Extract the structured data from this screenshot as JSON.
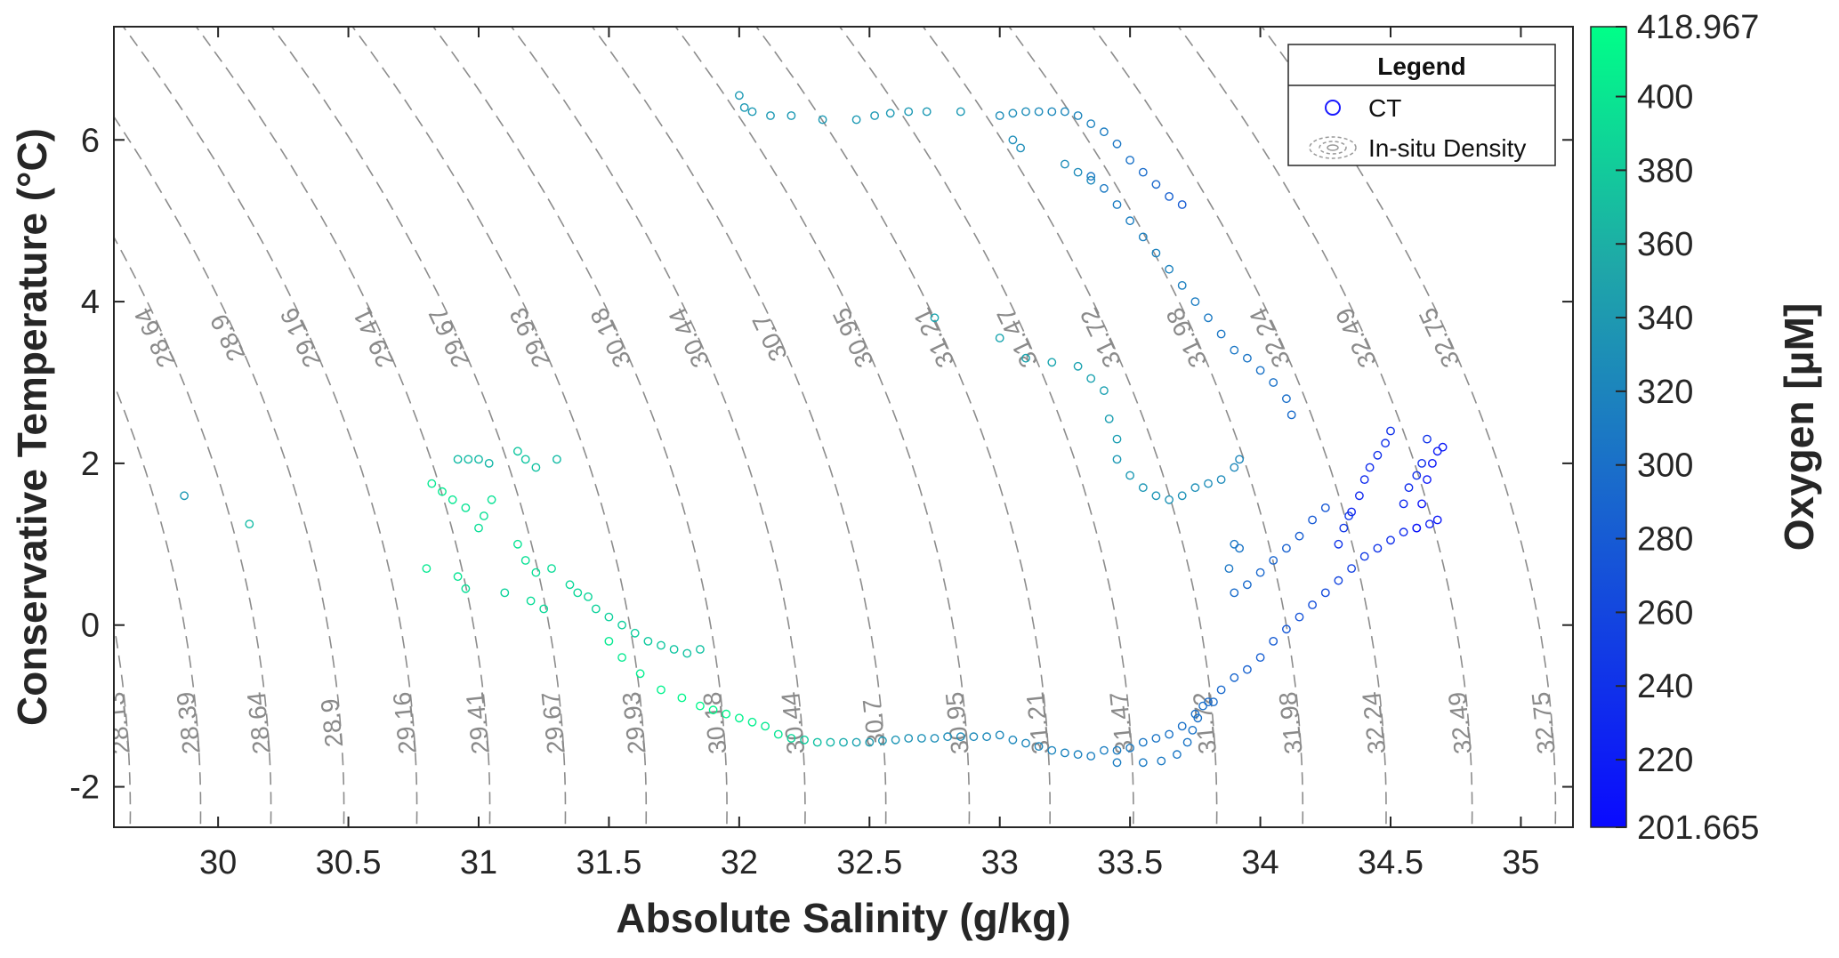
{
  "chart_data": {
    "type": "scatter",
    "xlabel": "Absolute Salinity (g/kg)",
    "ylabel": "Conservative Temperature (°C)",
    "xlim": [
      29.6,
      35.2
    ],
    "ylim": [
      -2.5,
      7.4
    ],
    "x_ticks": [
      30,
      30.5,
      31,
      31.5,
      32,
      32.5,
      33,
      33.5,
      34,
      34.5,
      35
    ],
    "x_tick_labels": [
      "30",
      "30.5",
      "31",
      "31.5",
      "32",
      "32.5",
      "33",
      "33.5",
      "34",
      "34.5",
      "35"
    ],
    "y_ticks": [
      -2,
      0,
      2,
      4,
      6
    ],
    "y_tick_labels": [
      "-2",
      "0",
      "2",
      "4",
      "6"
    ],
    "grid": false,
    "legend": {
      "title": "Legend",
      "placement": "top-right",
      "entries": [
        {
          "label": "CT",
          "marker": "circle",
          "color": "#1a1aff"
        },
        {
          "label": "In-situ Density",
          "marker": "dashed-contour",
          "color": "#888888"
        }
      ]
    },
    "colorbar": {
      "label": "Oxygen [μM]",
      "min": 201.665,
      "max": 418.967,
      "ticks": [
        201.665,
        220,
        240,
        260,
        280,
        300,
        320,
        340,
        360,
        380,
        400,
        418.967
      ],
      "tick_labels": [
        "201.665",
        "220",
        "240",
        "260",
        "280",
        "300",
        "320",
        "340",
        "360",
        "380",
        "400",
        "418.967"
      ],
      "color_low": "#0a0aff",
      "color_mid": "#1f8fb8",
      "color_high": "#00ff88"
    },
    "isopycnals": [
      {
        "label": "28.13",
        "x_at_0": 29.6
      },
      {
        "label": "28.39",
        "x_at_0": 29.87
      },
      {
        "label": "28.64",
        "x_at_0": 30.14
      },
      {
        "label": "28.9",
        "x_at_0": 30.42
      },
      {
        "label": "29.16",
        "x_at_0": 30.7
      },
      {
        "label": "29.41",
        "x_at_0": 30.98
      },
      {
        "label": "29.67",
        "x_at_0": 31.27
      },
      {
        "label": "29.93",
        "x_at_0": 31.58
      },
      {
        "label": "30.18",
        "x_at_0": 31.89
      },
      {
        "label": "30.44",
        "x_at_0": 32.19
      },
      {
        "label": "30.7",
        "x_at_0": 32.5
      },
      {
        "label": "30.95",
        "x_at_0": 32.82
      },
      {
        "label": "31.21",
        "x_at_0": 33.13
      },
      {
        "label": "31.47",
        "x_at_0": 33.45
      },
      {
        "label": "31.72",
        "x_at_0": 33.77
      },
      {
        "label": "31.98",
        "x_at_0": 34.1
      },
      {
        "label": "32.24",
        "x_at_0": 34.42
      },
      {
        "label": "32.49",
        "x_at_0": 34.75
      },
      {
        "label": "32.75",
        "x_at_0": 35.07
      }
    ],
    "series": [
      {
        "name": "CT",
        "points": [
          [
            29.87,
            1.6,
            330
          ],
          [
            30.12,
            1.25,
            360
          ],
          [
            30.8,
            0.7,
            400
          ],
          [
            30.92,
            0.6,
            395
          ],
          [
            30.95,
            0.45,
            390
          ],
          [
            30.82,
            1.75,
            400
          ],
          [
            30.86,
            1.65,
            400
          ],
          [
            30.9,
            1.55,
            398
          ],
          [
            30.95,
            1.45,
            395
          ],
          [
            31.02,
            1.35,
            392
          ],
          [
            31.05,
            1.55,
            394
          ],
          [
            31.0,
            1.2,
            390
          ],
          [
            31.1,
            0.4,
            380
          ],
          [
            30.92,
            2.05,
            360
          ],
          [
            30.96,
            2.05,
            360
          ],
          [
            31.0,
            2.05,
            358
          ],
          [
            31.04,
            2.0,
            355
          ],
          [
            31.15,
            2.15,
            370
          ],
          [
            31.18,
            2.05,
            368
          ],
          [
            31.22,
            1.95,
            366
          ],
          [
            31.3,
            2.05,
            360
          ],
          [
            31.15,
            1.0,
            395
          ],
          [
            31.18,
            0.8,
            392
          ],
          [
            31.22,
            0.65,
            390
          ],
          [
            31.28,
            0.7,
            388
          ],
          [
            31.2,
            0.3,
            388
          ],
          [
            31.25,
            0.2,
            386
          ],
          [
            31.35,
            0.5,
            385
          ],
          [
            31.38,
            0.4,
            384
          ],
          [
            31.42,
            0.35,
            382
          ],
          [
            31.45,
            0.2,
            380
          ],
          [
            31.5,
            0.1,
            378
          ],
          [
            31.55,
            0.0,
            376
          ],
          [
            31.6,
            -0.1,
            375
          ],
          [
            31.65,
            -0.2,
            372
          ],
          [
            31.7,
            -0.25,
            370
          ],
          [
            31.75,
            -0.3,
            368
          ],
          [
            31.8,
            -0.35,
            366
          ],
          [
            31.85,
            -0.3,
            365
          ],
          [
            31.5,
            -0.2,
            400
          ],
          [
            31.55,
            -0.4,
            400
          ],
          [
            31.62,
            -0.6,
            405
          ],
          [
            31.7,
            -0.8,
            408
          ],
          [
            31.78,
            -0.9,
            410
          ],
          [
            31.85,
            -1.0,
            412
          ],
          [
            31.9,
            -1.05,
            412
          ],
          [
            31.95,
            -1.1,
            410
          ],
          [
            32.0,
            -1.15,
            408
          ],
          [
            32.05,
            -1.2,
            405
          ],
          [
            32.1,
            -1.25,
            400
          ],
          [
            32.15,
            -1.35,
            395
          ],
          [
            32.2,
            -1.4,
            385
          ],
          [
            32.25,
            -1.42,
            375
          ],
          [
            32.3,
            -1.45,
            365
          ],
          [
            32.35,
            -1.45,
            355
          ],
          [
            32.4,
            -1.45,
            345
          ],
          [
            32.45,
            -1.45,
            338
          ],
          [
            32.5,
            -1.45,
            333
          ],
          [
            32.55,
            -1.43,
            330
          ],
          [
            32.6,
            -1.42,
            327
          ],
          [
            32.65,
            -1.4,
            325
          ],
          [
            32.7,
            -1.4,
            323
          ],
          [
            32.75,
            -1.4,
            321
          ],
          [
            32.8,
            -1.38,
            320
          ],
          [
            32.85,
            -1.38,
            319
          ],
          [
            32.9,
            -1.38,
            318
          ],
          [
            32.95,
            -1.38,
            317
          ],
          [
            33.0,
            -1.36,
            316
          ],
          [
            33.05,
            -1.42,
            315
          ],
          [
            33.1,
            -1.46,
            314
          ],
          [
            33.15,
            -1.5,
            313
          ],
          [
            33.2,
            -1.55,
            312
          ],
          [
            33.25,
            -1.58,
            311
          ],
          [
            33.3,
            -1.6,
            310
          ],
          [
            33.35,
            -1.62,
            308
          ],
          [
            33.4,
            -1.55,
            306
          ],
          [
            33.45,
            -1.55,
            305
          ],
          [
            33.5,
            -1.52,
            303
          ],
          [
            33.55,
            -1.45,
            300
          ],
          [
            33.6,
            -1.4,
            298
          ],
          [
            33.65,
            -1.35,
            296
          ],
          [
            33.7,
            -1.25,
            294
          ],
          [
            33.75,
            -1.1,
            292
          ],
          [
            33.8,
            -0.95,
            290
          ],
          [
            33.85,
            -0.8,
            287
          ],
          [
            33.9,
            -0.65,
            284
          ],
          [
            33.95,
            -0.55,
            281
          ],
          [
            34.0,
            -0.4,
            278
          ],
          [
            34.05,
            -0.2,
            275
          ],
          [
            34.1,
            -0.05,
            272
          ],
          [
            34.15,
            0.1,
            268
          ],
          [
            34.2,
            0.25,
            264
          ],
          [
            34.25,
            0.4,
            260
          ],
          [
            34.3,
            0.55,
            256
          ],
          [
            34.35,
            0.7,
            250
          ],
          [
            34.4,
            0.85,
            245
          ],
          [
            34.45,
            0.95,
            240
          ],
          [
            34.5,
            1.05,
            235
          ],
          [
            34.55,
            1.15,
            230
          ],
          [
            34.6,
            1.2,
            225
          ],
          [
            34.65,
            1.25,
            220
          ],
          [
            34.68,
            1.3,
            215
          ],
          [
            33.45,
            -1.7,
            305
          ],
          [
            33.55,
            -1.7,
            303
          ],
          [
            33.62,
            -1.68,
            302
          ],
          [
            33.68,
            -1.6,
            300
          ],
          [
            33.72,
            -1.45,
            298
          ],
          [
            33.74,
            -1.3,
            296
          ],
          [
            33.76,
            -1.15,
            294
          ],
          [
            33.78,
            -1.0,
            292
          ],
          [
            33.82,
            -0.95,
            290
          ],
          [
            34.6,
            1.2,
            210
          ],
          [
            34.62,
            1.5,
            212
          ],
          [
            34.64,
            1.8,
            214
          ],
          [
            34.66,
            2.0,
            215
          ],
          [
            34.68,
            2.15,
            216
          ],
          [
            34.7,
            2.2,
            215
          ],
          [
            34.35,
            1.4,
            225
          ],
          [
            34.38,
            1.6,
            228
          ],
          [
            34.4,
            1.8,
            230
          ],
          [
            34.42,
            1.95,
            232
          ],
          [
            34.45,
            2.1,
            235
          ],
          [
            34.48,
            2.25,
            236
          ],
          [
            34.5,
            2.4,
            237
          ],
          [
            34.3,
            1.0,
            240
          ],
          [
            34.32,
            1.2,
            242
          ],
          [
            34.34,
            1.35,
            244
          ],
          [
            34.55,
            1.5,
            230
          ],
          [
            34.57,
            1.7,
            232
          ],
          [
            34.6,
            1.85,
            234
          ],
          [
            34.62,
            2.0,
            236
          ],
          [
            34.64,
            2.3,
            238
          ],
          [
            33.9,
            0.4,
            290
          ],
          [
            33.95,
            0.5,
            288
          ],
          [
            34.0,
            0.65,
            286
          ],
          [
            34.05,
            0.8,
            283
          ],
          [
            34.1,
            0.95,
            280
          ],
          [
            34.15,
            1.1,
            277
          ],
          [
            34.2,
            1.3,
            274
          ],
          [
            34.25,
            1.45,
            271
          ],
          [
            33.9,
            1.0,
            300
          ],
          [
            33.88,
            0.7,
            300
          ],
          [
            33.92,
            0.95,
            298
          ],
          [
            33.45,
            2.05,
            330
          ],
          [
            33.5,
            1.85,
            330
          ],
          [
            33.55,
            1.7,
            328
          ],
          [
            33.6,
            1.6,
            326
          ],
          [
            33.65,
            1.55,
            325
          ],
          [
            33.7,
            1.6,
            324
          ],
          [
            33.75,
            1.7,
            322
          ],
          [
            33.8,
            1.75,
            320
          ],
          [
            33.85,
            1.8,
            318
          ],
          [
            33.9,
            1.95,
            316
          ],
          [
            33.92,
            2.05,
            315
          ],
          [
            32.0,
            6.55,
            330
          ],
          [
            32.02,
            6.4,
            330
          ],
          [
            32.05,
            6.35,
            330
          ],
          [
            32.12,
            6.3,
            330
          ],
          [
            32.2,
            6.3,
            330
          ],
          [
            32.32,
            6.25,
            330
          ],
          [
            32.45,
            6.25,
            330
          ],
          [
            32.52,
            6.3,
            330
          ],
          [
            32.58,
            6.33,
            330
          ],
          [
            32.65,
            6.35,
            330
          ],
          [
            32.72,
            6.35,
            330
          ],
          [
            32.85,
            6.35,
            330
          ],
          [
            33.0,
            6.3,
            320
          ],
          [
            33.05,
            6.33,
            320
          ],
          [
            33.1,
            6.35,
            320
          ],
          [
            33.15,
            6.35,
            318
          ],
          [
            33.2,
            6.35,
            316
          ],
          [
            33.25,
            6.35,
            315
          ],
          [
            33.3,
            6.3,
            313
          ],
          [
            33.35,
            6.2,
            310
          ],
          [
            33.4,
            6.1,
            305
          ],
          [
            33.45,
            5.95,
            300
          ],
          [
            33.5,
            5.75,
            295
          ],
          [
            33.55,
            5.6,
            290
          ],
          [
            33.6,
            5.45,
            285
          ],
          [
            33.65,
            5.3,
            280
          ],
          [
            33.7,
            5.2,
            275
          ],
          [
            33.35,
            5.55,
            300
          ],
          [
            33.4,
            5.4,
            302
          ],
          [
            33.45,
            5.2,
            304
          ],
          [
            33.5,
            5.0,
            306
          ],
          [
            33.55,
            4.8,
            308
          ],
          [
            33.6,
            4.6,
            310
          ],
          [
            33.65,
            4.4,
            310
          ],
          [
            33.7,
            4.2,
            308
          ],
          [
            33.75,
            4.0,
            305
          ],
          [
            33.8,
            3.8,
            302
          ],
          [
            33.85,
            3.6,
            300
          ],
          [
            33.9,
            3.4,
            300
          ],
          [
            33.95,
            3.3,
            298
          ],
          [
            34.0,
            3.15,
            296
          ],
          [
            34.05,
            3.0,
            294
          ],
          [
            34.1,
            2.8,
            292
          ],
          [
            34.12,
            2.6,
            290
          ],
          [
            33.05,
            6.0,
            320
          ],
          [
            33.08,
            5.9,
            320
          ],
          [
            33.25,
            5.7,
            320
          ],
          [
            33.3,
            5.6,
            318
          ],
          [
            33.35,
            5.5,
            316
          ],
          [
            32.75,
            3.8,
            340
          ],
          [
            33.0,
            3.55,
            340
          ],
          [
            33.1,
            3.3,
            340
          ],
          [
            33.2,
            3.25,
            340
          ],
          [
            33.3,
            3.2,
            338
          ],
          [
            33.35,
            3.05,
            338
          ],
          [
            33.4,
            2.9,
            336
          ],
          [
            33.42,
            2.55,
            335
          ],
          [
            33.45,
            2.3,
            334
          ]
        ]
      }
    ]
  }
}
